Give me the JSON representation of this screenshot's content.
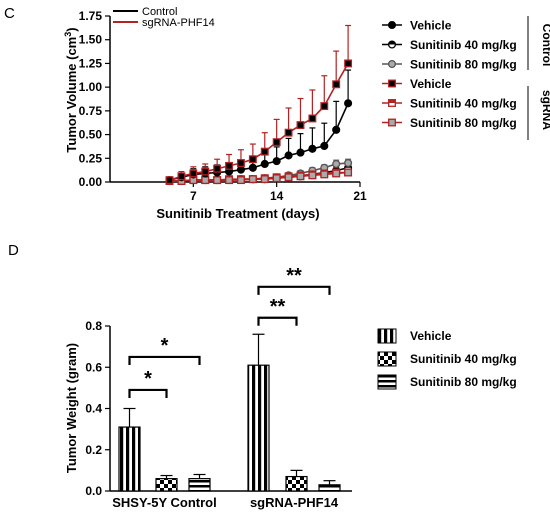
{
  "panel_labels": {
    "top": "C",
    "bottom": "D"
  },
  "colors": {
    "control": "#000000",
    "sgrna": "#b22222",
    "grey": "#aaaaaa"
  },
  "chart_data": [
    {
      "type": "line",
      "panel": "C",
      "xlabel": "Sunitinib Treatment (days)",
      "ylabel": "Tumor Volume (cm",
      "ylabel_superscript": "3",
      "ylabel_close": ")",
      "xlim": [
        0,
        21
      ],
      "ylim": [
        0,
        1.75
      ],
      "xticks": [
        7,
        14,
        21
      ],
      "xtick_labels": [
        "7",
        "14",
        "21"
      ],
      "yticks": [
        0,
        0.25,
        0.5,
        0.75,
        1.0,
        1.25,
        1.5,
        1.75
      ],
      "ytick_labels": [
        "0.00",
        "0.25",
        "0.50",
        "0.75",
        "1.00",
        "1.25",
        "1.50",
        "1.75"
      ],
      "top_legend": [
        {
          "label": "Control",
          "color": "#000000"
        },
        {
          "label": "sgRNA-PHF14",
          "color": "#b22222"
        }
      ],
      "group_labels": [
        "Control",
        "sgRNA"
      ],
      "series": [
        {
          "name": "Vehicle",
          "group": "Control",
          "color": "#000000",
          "marker": "circle",
          "fill": "#000000",
          "x": [
            5,
            6,
            7,
            8,
            9,
            10,
            11,
            12,
            13,
            14,
            15,
            16,
            17,
            18,
            19,
            20
          ],
          "y": [
            0.02,
            0.05,
            0.08,
            0.09,
            0.1,
            0.11,
            0.13,
            0.15,
            0.19,
            0.22,
            0.28,
            0.31,
            0.35,
            0.38,
            0.55,
            0.83
          ],
          "err": [
            0.02,
            0.04,
            0.06,
            0.07,
            0.08,
            0.09,
            0.1,
            0.12,
            0.14,
            0.15,
            0.18,
            0.2,
            0.22,
            0.24,
            0.3,
            0.35
          ]
        },
        {
          "name": "Sunitinib 40 mg/kg",
          "group": "Control",
          "color": "#000000",
          "marker": "circle-half",
          "fill": "#ffffff",
          "x": [
            5,
            6,
            7,
            8,
            9,
            10,
            11,
            12,
            13,
            14,
            15,
            16,
            17,
            18,
            19,
            20
          ],
          "y": [
            0.01,
            0.01,
            0.02,
            0.02,
            0.02,
            0.02,
            0.03,
            0.03,
            0.03,
            0.04,
            0.05,
            0.06,
            0.08,
            0.1,
            0.12,
            0.15
          ],
          "err": [
            0.01,
            0.01,
            0.01,
            0.01,
            0.01,
            0.01,
            0.01,
            0.01,
            0.01,
            0.01,
            0.02,
            0.02,
            0.02,
            0.03,
            0.03,
            0.04
          ]
        },
        {
          "name": "Sunitinib 80 mg/kg",
          "group": "Control",
          "color": "#555555",
          "marker": "circle",
          "fill": "#aaaaaa",
          "x": [
            5,
            6,
            7,
            8,
            9,
            10,
            11,
            12,
            13,
            14,
            15,
            16,
            17,
            18,
            19,
            20
          ],
          "y": [
            0.01,
            0.01,
            0.02,
            0.02,
            0.02,
            0.02,
            0.03,
            0.03,
            0.04,
            0.05,
            0.07,
            0.09,
            0.12,
            0.15,
            0.19,
            0.2
          ],
          "err": [
            0.01,
            0.01,
            0.01,
            0.01,
            0.01,
            0.01,
            0.01,
            0.02,
            0.02,
            0.02,
            0.02,
            0.03,
            0.03,
            0.03,
            0.04,
            0.04
          ]
        },
        {
          "name": "Vehicle",
          "group": "sgRNA",
          "color": "#b22222",
          "marker": "square",
          "fill": "#000000",
          "x": [
            5,
            6,
            7,
            8,
            9,
            10,
            11,
            12,
            13,
            14,
            15,
            16,
            17,
            18,
            19,
            20
          ],
          "y": [
            0.02,
            0.06,
            0.09,
            0.11,
            0.14,
            0.17,
            0.2,
            0.24,
            0.32,
            0.42,
            0.52,
            0.6,
            0.67,
            0.8,
            1.03,
            1.25
          ],
          "err": [
            0.02,
            0.05,
            0.07,
            0.08,
            0.1,
            0.12,
            0.14,
            0.16,
            0.2,
            0.24,
            0.26,
            0.28,
            0.3,
            0.32,
            0.35,
            0.4
          ]
        },
        {
          "name": "Sunitinib 40 mg/kg",
          "group": "sgRNA",
          "color": "#b22222",
          "marker": "square-half",
          "fill": "#ffffff",
          "x": [
            5,
            6,
            7,
            8,
            9,
            10,
            11,
            12,
            13,
            14,
            15,
            16,
            17,
            18,
            19,
            20
          ],
          "y": [
            0.01,
            0.01,
            0.02,
            0.02,
            0.02,
            0.03,
            0.03,
            0.03,
            0.04,
            0.05,
            0.06,
            0.07,
            0.08,
            0.09,
            0.1,
            0.1
          ],
          "err": [
            0.01,
            0.01,
            0.01,
            0.01,
            0.01,
            0.01,
            0.01,
            0.01,
            0.01,
            0.01,
            0.02,
            0.02,
            0.02,
            0.02,
            0.02,
            0.02
          ]
        },
        {
          "name": "Sunitinib 80 mg/kg",
          "group": "sgRNA",
          "color": "#b22222",
          "marker": "square",
          "fill": "#aaaaaa",
          "x": [
            5,
            6,
            7,
            8,
            9,
            10,
            11,
            12,
            13,
            14,
            15,
            16,
            17,
            18,
            19,
            20
          ],
          "y": [
            0.01,
            0.01,
            0.02,
            0.02,
            0.02,
            0.02,
            0.02,
            0.03,
            0.03,
            0.04,
            0.05,
            0.06,
            0.07,
            0.08,
            0.09,
            0.1
          ],
          "err": [
            0.01,
            0.01,
            0.01,
            0.01,
            0.01,
            0.01,
            0.01,
            0.01,
            0.01,
            0.01,
            0.01,
            0.02,
            0.02,
            0.02,
            0.02,
            0.02
          ]
        }
      ]
    },
    {
      "type": "bar",
      "panel": "D",
      "ylabel": "Tumor Weight (gram)",
      "ylim": [
        0,
        0.8
      ],
      "yticks": [
        0,
        0.2,
        0.4,
        0.6,
        0.8
      ],
      "ytick_labels": [
        "0.0",
        "0.2",
        "0.4",
        "0.6",
        "0.8"
      ],
      "categories": [
        "SHSY-5Y Control",
        "sgRNA-PHF14"
      ],
      "series": [
        {
          "name": "Vehicle",
          "pattern": "vertical-stripes",
          "values": [
            0.31,
            0.61
          ],
          "err": [
            0.09,
            0.15
          ]
        },
        {
          "name": "Sunitinib 40 mg/kg",
          "pattern": "checker",
          "values": [
            0.06,
            0.07
          ],
          "err": [
            0.015,
            0.03
          ]
        },
        {
          "name": "Sunitinib 80 mg/kg",
          "pattern": "horizontal-stripes",
          "values": [
            0.06,
            0.03
          ],
          "err": [
            0.02,
            0.02
          ]
        }
      ],
      "significance": [
        {
          "category": 0,
          "from_series": 0,
          "to_series": 1,
          "label": "*",
          "level": 0.49
        },
        {
          "category": 0,
          "from_series": 0,
          "to_series": 2,
          "label": "*",
          "level": 0.65
        },
        {
          "category": 1,
          "from_series": 0,
          "to_series": 1,
          "label": "**",
          "level": 0.84
        },
        {
          "category": 1,
          "from_series": 0,
          "to_series": 2,
          "label": "**",
          "level": 0.99
        }
      ]
    }
  ]
}
